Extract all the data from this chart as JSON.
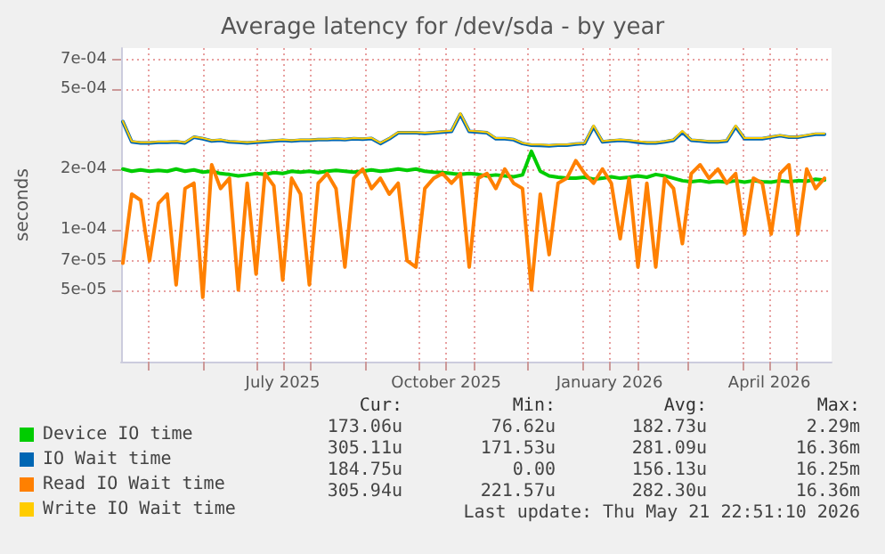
{
  "chart_data": {
    "type": "line",
    "title": "Average latency for /dev/sda - by year",
    "ylabel": "seconds",
    "x": [
      "2025-04-17",
      "2025-04-22",
      "2025-04-27",
      "2025-05-02",
      "2025-05-07",
      "2025-05-12",
      "2025-05-17",
      "2025-05-22",
      "2025-05-27",
      "2025-06-01",
      "2025-06-06",
      "2025-06-11",
      "2025-06-16",
      "2025-06-21",
      "2025-06-26",
      "2025-07-01",
      "2025-07-06",
      "2025-07-11",
      "2025-07-16",
      "2025-07-21",
      "2025-07-26",
      "2025-07-31",
      "2025-08-05",
      "2025-08-10",
      "2025-08-15",
      "2025-08-20",
      "2025-08-25",
      "2025-08-30",
      "2025-09-04",
      "2025-09-09",
      "2025-09-14",
      "2025-09-19",
      "2025-09-24",
      "2025-09-29",
      "2025-10-04",
      "2025-10-09",
      "2025-10-14",
      "2025-10-19",
      "2025-10-24",
      "2025-10-29",
      "2025-11-03",
      "2025-11-08",
      "2025-11-13",
      "2025-11-18",
      "2025-11-23",
      "2025-11-28",
      "2025-12-03",
      "2025-12-08",
      "2025-12-13",
      "2025-12-18",
      "2025-12-23",
      "2025-12-28",
      "2026-01-02",
      "2026-01-07",
      "2026-01-12",
      "2026-01-17",
      "2026-01-22",
      "2026-01-27",
      "2026-02-01",
      "2026-02-06",
      "2026-02-11",
      "2026-02-16",
      "2026-02-21",
      "2026-02-26",
      "2026-03-03",
      "2026-03-08",
      "2026-03-13",
      "2026-03-18",
      "2026-03-23",
      "2026-03-28",
      "2026-04-02",
      "2026-04-07",
      "2026-04-12",
      "2026-04-17",
      "2026-04-22",
      "2026-04-27",
      "2026-05-02",
      "2026-05-07",
      "2026-05-12",
      "2026-05-17"
    ],
    "series": [
      {
        "name": "Device IO time",
        "color": "#00cc00",
        "values": [
          0.0002,
          0.000195,
          0.000198,
          0.000195,
          0.000197,
          0.000195,
          0.0002,
          0.000195,
          0.000198,
          0.000193,
          0.000195,
          0.00019,
          0.000188,
          0.000185,
          0.000187,
          0.00019,
          0.000188,
          0.000192,
          0.00019,
          0.000195,
          0.000193,
          0.000195,
          0.000192,
          0.000195,
          0.000197,
          0.000195,
          0.000193,
          0.000195,
          0.000198,
          0.000195,
          0.000197,
          0.0002,
          0.000197,
          0.0002,
          0.000195,
          0.000193,
          0.000192,
          0.00019,
          0.000188,
          0.00019,
          0.000188,
          0.000185,
          0.000187,
          0.000185,
          0.000183,
          0.000187,
          0.000245,
          0.000195,
          0.000185,
          0.000182,
          0.00018,
          0.00018,
          0.000182,
          0.000178,
          0.00018,
          0.000183,
          0.00018,
          0.000182,
          0.000185,
          0.000182,
          0.000188,
          0.000185,
          0.00018,
          0.000175,
          0.000173,
          0.000175,
          0.000172,
          0.000174,
          0.000172,
          0.000175,
          0.000172,
          0.000175,
          0.000173,
          0.000172,
          0.000175,
          0.000173,
          0.000175,
          0.000174,
          0.000178,
          0.000176
        ]
      },
      {
        "name": "IO Wait time",
        "color": "#0066b3",
        "values": [
          0.000344,
          0.000273,
          0.00027,
          0.00027,
          0.000272,
          0.000272,
          0.000273,
          0.00027,
          0.000288,
          0.000283,
          0.000276,
          0.000278,
          0.000273,
          0.000272,
          0.00027,
          0.000272,
          0.000274,
          0.000276,
          0.000278,
          0.000276,
          0.000278,
          0.000278,
          0.00028,
          0.00028,
          0.000282,
          0.00028,
          0.000283,
          0.000282,
          0.000284,
          0.000268,
          0.000283,
          0.000303,
          0.000303,
          0.000303,
          0.000301,
          0.000303,
          0.000306,
          0.000308,
          0.000375,
          0.000308,
          0.000306,
          0.000303,
          0.000283,
          0.000283,
          0.00028,
          0.000268,
          0.000263,
          0.000262,
          0.000261,
          0.000263,
          0.000263,
          0.000266,
          0.000268,
          0.000325,
          0.000273,
          0.000276,
          0.000278,
          0.000276,
          0.000272,
          0.00027,
          0.00027,
          0.000273,
          0.000278,
          0.000305,
          0.000278,
          0.000276,
          0.000273,
          0.000273,
          0.000276,
          0.000325,
          0.000283,
          0.000283,
          0.000283,
          0.000288,
          0.000293,
          0.000288,
          0.000288,
          0.000293,
          0.000298,
          0.000298
        ]
      },
      {
        "name": "Read IO Wait time",
        "color": "#ff8000",
        "values": [
          6.8e-05,
          0.00015,
          0.00014,
          7e-05,
          0.000135,
          0.00015,
          5.3e-05,
          0.00016,
          0.00017,
          4.6e-05,
          0.00021,
          0.00016,
          0.00018,
          5e-05,
          0.00017,
          6e-05,
          0.00019,
          0.000165,
          5.6e-05,
          0.00018,
          0.00015,
          5.3e-05,
          0.00017,
          0.00019,
          0.00016,
          6.5e-05,
          0.00018,
          0.0002,
          0.00016,
          0.00018,
          0.00015,
          0.00017,
          7e-05,
          6.5e-05,
          0.00016,
          0.00018,
          0.00019,
          0.00017,
          0.00019,
          6.5e-05,
          0.00018,
          0.00019,
          0.00016,
          0.0002,
          0.00017,
          0.00016,
          5e-05,
          0.00015,
          7.5e-05,
          0.00017,
          0.00018,
          0.00022,
          0.00019,
          0.00017,
          0.0002,
          0.00017,
          9e-05,
          0.00018,
          6.5e-05,
          0.00017,
          6.5e-05,
          0.00018,
          0.00016,
          8.5e-05,
          0.00019,
          0.00021,
          0.00018,
          0.0002,
          0.00017,
          0.00019,
          9.5e-05,
          0.00018,
          0.00017,
          9.5e-05,
          0.00019,
          0.00021,
          9.5e-05,
          0.0002,
          0.00016,
          0.00018
        ]
      },
      {
        "name": "Write IO Wait time",
        "color": "#ffcc00",
        "values": [
          0.000346,
          0.000275,
          0.000272,
          0.000272,
          0.000274,
          0.000274,
          0.000275,
          0.000272,
          0.00029,
          0.000285,
          0.000278,
          0.00028,
          0.000275,
          0.000274,
          0.000272,
          0.000274,
          0.000276,
          0.000278,
          0.00028,
          0.000278,
          0.00028,
          0.00028,
          0.000282,
          0.000282,
          0.000284,
          0.000282,
          0.000285,
          0.000284,
          0.000286,
          0.00027,
          0.000285,
          0.000305,
          0.000305,
          0.000305,
          0.000303,
          0.000305,
          0.000308,
          0.00031,
          0.00038,
          0.00031,
          0.000308,
          0.000305,
          0.000285,
          0.000285,
          0.000282,
          0.00027,
          0.000265,
          0.000265,
          0.000263,
          0.000265,
          0.000265,
          0.000268,
          0.00027,
          0.00033,
          0.000275,
          0.000278,
          0.00028,
          0.000278,
          0.000275,
          0.000272,
          0.000272,
          0.000275,
          0.00028,
          0.00031,
          0.00028,
          0.000278,
          0.000275,
          0.000275,
          0.000278,
          0.00033,
          0.000285,
          0.000285,
          0.000285,
          0.00029,
          0.000295,
          0.00029,
          0.00029,
          0.000295,
          0.0003,
          0.0003
        ]
      }
    ],
    "log": "y",
    "ylim": [
      2.2e-05,
      0.0008
    ],
    "yticks": [
      {
        "value": 5e-05,
        "label": "5e-05"
      },
      {
        "value": 7e-05,
        "label": "7e-05"
      },
      {
        "value": 0.0001,
        "label": "1e-04"
      },
      {
        "value": 0.0002,
        "label": "2e-04"
      },
      {
        "value": 0.0005,
        "label": "5e-04"
      },
      {
        "value": 0.0007,
        "label": "7e-04"
      }
    ],
    "xlim": [
      "2025-04-16",
      "2026-05-21"
    ],
    "xticks": [
      {
        "value": "2025-05-01",
        "label": null
      },
      {
        "value": "2025-06-01",
        "label": null
      },
      {
        "value": "2025-07-01",
        "label": null
      },
      {
        "value": "2025-07-16",
        "label": "July 2025"
      },
      {
        "value": "2025-08-01",
        "label": null
      },
      {
        "value": "2025-09-01",
        "label": null
      },
      {
        "value": "2025-10-01",
        "label": null
      },
      {
        "value": "2025-10-16",
        "label": "October 2025"
      },
      {
        "value": "2025-11-01",
        "label": null
      },
      {
        "value": "2025-12-01",
        "label": null
      },
      {
        "value": "2026-01-01",
        "label": null
      },
      {
        "value": "2026-01-16",
        "label": "January 2026"
      },
      {
        "value": "2026-02-01",
        "label": null
      },
      {
        "value": "2026-03-01",
        "label": null
      },
      {
        "value": "2026-04-01",
        "label": null
      },
      {
        "value": "2026-04-16",
        "label": "April 2026"
      },
      {
        "value": "2026-05-01",
        "label": null
      }
    ],
    "grid": true,
    "legend": "bottom left",
    "marker": "none",
    "line_style": "solid",
    "annotations": [
      "Cur:",
      "Min:",
      "Avg:",
      "Max:",
      "173.06u",
      "76.62u",
      "182.73u",
      "2.29m",
      "305.11u",
      "171.53u",
      "281.09u",
      "16.36m",
      "184.75u",
      "0.00",
      "156.13u",
      "16.25m",
      "305.94u",
      "221.57u",
      "282.30u",
      "16.36m",
      "Last update: Thu May 21 22:51:10 2026"
    ]
  }
}
